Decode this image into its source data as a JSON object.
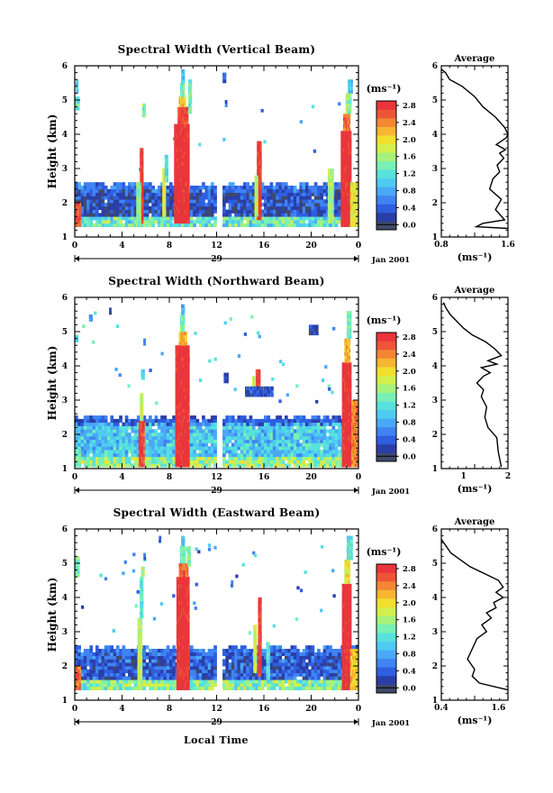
{
  "figure": {
    "x_title": "Local Time",
    "date_label": "Jan 2001",
    "day_label": "29",
    "x_ticks": [
      "0",
      "4",
      "8",
      "12",
      "16",
      "20",
      "0"
    ],
    "y_title": "Height (km)",
    "y_ticks": [
      "1",
      "2",
      "3",
      "4",
      "5",
      "6"
    ],
    "unit_label": "(ms⁻¹)",
    "colorbar_ticks": [
      "0.0",
      "0.4",
      "0.8",
      "1.2",
      "1.6",
      "2.0",
      "2.4",
      "2.8"
    ],
    "colormap": [
      "#3f4a6b",
      "#2a3ea8",
      "#2f5ee0",
      "#3f84f2",
      "#4aa8f6",
      "#4ecbf1",
      "#57e2dc",
      "#78f0b6",
      "#a6f27c",
      "#d3ef4c",
      "#f2df2e",
      "#f7b531",
      "#f48634",
      "#ee5537",
      "#e9353b"
    ],
    "average_title": "Average",
    "colors": {
      "missing": "#ffffff",
      "axis": "#000000",
      "line": "#000000"
    }
  },
  "panels": [
    {
      "title": "Spectral Width (Vertical Beam)",
      "avg_xticks": [
        "0.8",
        "1.6"
      ],
      "avg_xlabel": "(ms⁻¹)"
    },
    {
      "title": "Spectral Width (Northward Beam)",
      "avg_xticks": [
        "1",
        "2"
      ],
      "avg_xlabel": "(ms⁻¹)"
    },
    {
      "title": "Spectral Width (Eastward Beam)",
      "avg_xticks": [
        "0.4",
        "1.6"
      ],
      "avg_xlabel": "(ms⁻¹)"
    }
  ],
  "chart_data": [
    {
      "type": "heatmap",
      "title": "Spectral Width (Vertical Beam)",
      "xlabel": "Local Time",
      "ylabel": "Height (km)",
      "xlim": [
        0,
        24
      ],
      "ylim": [
        1,
        6
      ],
      "zlim": [
        0,
        3.0
      ],
      "colorbar_label": "(ms⁻¹)",
      "data_gaps_hours": [
        [
          12.0,
          12.3
        ]
      ],
      "layer_top_km": 2.55,
      "layer_bottom_km": 1.3,
      "layer_values": {
        "top_edge": 0.6,
        "mid": 0.4,
        "bottom": 1.2
      },
      "cells": [
        {
          "t0": 0.0,
          "t1": 0.5,
          "h0": 1.3,
          "h1": 2.0,
          "v": 2.7
        },
        {
          "t0": 0.0,
          "t1": 0.4,
          "h0": 4.7,
          "h1": 5.1,
          "v": 1.4
        },
        {
          "t0": 0.1,
          "t1": 0.3,
          "h0": 5.2,
          "h1": 5.6,
          "v": 1.0
        },
        {
          "t0": 5.4,
          "t1": 5.8,
          "h0": 1.4,
          "h1": 2.6,
          "v": 2.8
        },
        {
          "t0": 5.5,
          "t1": 5.8,
          "h0": 2.6,
          "h1": 3.6,
          "v": 2.9
        },
        {
          "t0": 5.2,
          "t1": 5.6,
          "h0": 1.3,
          "h1": 2.6,
          "v": 1.6
        },
        {
          "t0": 5.7,
          "t1": 6.0,
          "h0": 4.5,
          "h1": 4.9,
          "v": 1.6
        },
        {
          "t0": 7.4,
          "t1": 7.7,
          "h0": 1.6,
          "h1": 3.0,
          "v": 2.0
        },
        {
          "t0": 7.6,
          "t1": 7.9,
          "h0": 2.6,
          "h1": 3.4,
          "v": 1.3
        },
        {
          "t0": 8.4,
          "t1": 9.7,
          "h0": 1.4,
          "h1": 4.3,
          "v": 3.0
        },
        {
          "t0": 8.7,
          "t1": 9.6,
          "h0": 4.3,
          "h1": 4.8,
          "v": 2.8
        },
        {
          "t0": 8.8,
          "t1": 9.4,
          "h0": 4.8,
          "h1": 5.1,
          "v": 2.2
        },
        {
          "t0": 8.9,
          "t1": 9.3,
          "h0": 5.1,
          "h1": 5.5,
          "v": 1.5
        },
        {
          "t0": 9.0,
          "t1": 9.3,
          "h0": 5.5,
          "h1": 5.9,
          "v": 1.0
        },
        {
          "t0": 9.6,
          "t1": 9.9,
          "h0": 4.6,
          "h1": 5.6,
          "v": 1.4
        },
        {
          "t0": 12.5,
          "t1": 12.8,
          "h0": 5.5,
          "h1": 5.8,
          "v": 0.5
        },
        {
          "t0": 12.7,
          "t1": 12.9,
          "h0": 4.8,
          "h1": 5.0,
          "v": 0.6
        },
        {
          "t0": 15.4,
          "t1": 15.8,
          "h0": 1.5,
          "h1": 3.8,
          "v": 2.9
        },
        {
          "t0": 15.2,
          "t1": 15.5,
          "h0": 1.6,
          "h1": 2.8,
          "v": 1.8
        },
        {
          "t0": 21.4,
          "t1": 21.9,
          "h0": 1.4,
          "h1": 3.0,
          "v": 1.7
        },
        {
          "t0": 22.5,
          "t1": 23.4,
          "h0": 1.3,
          "h1": 4.1,
          "v": 3.0
        },
        {
          "t0": 22.7,
          "t1": 23.3,
          "h0": 4.1,
          "h1": 4.6,
          "v": 2.6
        },
        {
          "t0": 22.9,
          "t1": 23.4,
          "h0": 4.6,
          "h1": 5.2,
          "v": 1.6
        },
        {
          "t0": 23.1,
          "t1": 23.5,
          "h0": 5.2,
          "h1": 5.6,
          "v": 1.0
        },
        {
          "t0": 23.3,
          "t1": 24.0,
          "h0": 1.3,
          "h1": 2.6,
          "v": 2.0
        }
      ],
      "average_profile": {
        "xlim": [
          0.8,
          1.6
        ],
        "ylim": [
          1,
          6
        ],
        "xlabel": "(ms⁻¹)",
        "x": [
          1.6,
          1.22,
          1.3,
          1.56,
          1.45,
          1.52,
          1.38,
          1.42,
          1.5,
          1.47,
          1.55,
          1.5,
          1.57,
          1.46,
          1.58,
          1.6,
          1.56,
          1.45,
          1.3,
          1.2,
          1.05,
          0.9,
          0.85,
          0.8
        ],
        "height_km": [
          1.25,
          1.3,
          1.4,
          1.5,
          1.8,
          2.1,
          2.4,
          2.7,
          2.9,
          3.1,
          3.3,
          3.45,
          3.55,
          3.7,
          3.9,
          4.0,
          4.2,
          4.5,
          4.8,
          5.1,
          5.4,
          5.6,
          5.8,
          5.9
        ]
      }
    },
    {
      "type": "heatmap",
      "title": "Spectral Width (Northward Beam)",
      "xlabel": "Local Time",
      "ylabel": "Height (km)",
      "xlim": [
        0,
        24
      ],
      "ylim": [
        1,
        6
      ],
      "zlim": [
        0,
        3.0
      ],
      "colorbar_label": "(ms⁻¹)",
      "data_gaps_hours": [
        [
          12.0,
          12.3
        ]
      ],
      "layer_top_km": 2.55,
      "layer_bottom_km": 1.05,
      "layer_values": {
        "top_edge": 0.5,
        "mid": 1.1,
        "bottom": 1.5
      },
      "cells": [
        {
          "t0": 0.0,
          "t1": 0.5,
          "h0": 1.05,
          "h1": 1.6,
          "v": 1.5
        },
        {
          "t0": 0.0,
          "t1": 0.3,
          "h0": 4.7,
          "h1": 4.9,
          "v": 1.2
        },
        {
          "t0": 1.2,
          "t1": 1.5,
          "h0": 5.3,
          "h1": 5.5,
          "v": 0.6
        },
        {
          "t0": 2.9,
          "t1": 3.1,
          "h0": 5.5,
          "h1": 5.7,
          "v": 0.4
        },
        {
          "t0": 5.4,
          "t1": 5.9,
          "h0": 1.05,
          "h1": 2.4,
          "v": 2.8
        },
        {
          "t0": 5.5,
          "t1": 5.8,
          "h0": 2.4,
          "h1": 3.2,
          "v": 1.8
        },
        {
          "t0": 5.6,
          "t1": 5.9,
          "h0": 3.6,
          "h1": 3.9,
          "v": 1.2
        },
        {
          "t0": 5.8,
          "t1": 6.0,
          "h0": 4.6,
          "h1": 4.8,
          "v": 0.8
        },
        {
          "t0": 8.5,
          "t1": 9.7,
          "h0": 1.05,
          "h1": 4.6,
          "v": 3.0
        },
        {
          "t0": 8.8,
          "t1": 9.5,
          "h0": 4.6,
          "h1": 5.0,
          "v": 2.3
        },
        {
          "t0": 8.9,
          "t1": 9.3,
          "h0": 5.0,
          "h1": 5.5,
          "v": 1.5
        },
        {
          "t0": 9.0,
          "t1": 9.3,
          "h0": 5.5,
          "h1": 5.8,
          "v": 1.0
        },
        {
          "t0": 12.6,
          "t1": 13.0,
          "h0": 3.5,
          "h1": 3.8,
          "v": 0.4
        },
        {
          "t0": 15.3,
          "t1": 15.7,
          "h0": 3.2,
          "h1": 3.9,
          "v": 2.9
        },
        {
          "t0": 15.0,
          "t1": 15.3,
          "h0": 3.3,
          "h1": 3.7,
          "v": 1.8
        },
        {
          "t0": 14.4,
          "t1": 16.8,
          "h0": 3.1,
          "h1": 3.4,
          "v": 0.4
        },
        {
          "t0": 19.8,
          "t1": 20.6,
          "h0": 4.9,
          "h1": 5.2,
          "v": 0.3
        },
        {
          "t0": 22.6,
          "t1": 23.4,
          "h0": 1.05,
          "h1": 4.1,
          "v": 3.0
        },
        {
          "t0": 22.8,
          "t1": 23.3,
          "h0": 4.1,
          "h1": 4.8,
          "v": 2.3
        },
        {
          "t0": 23.0,
          "t1": 23.4,
          "h0": 4.8,
          "h1": 5.6,
          "v": 1.5
        },
        {
          "t0": 23.4,
          "t1": 24.0,
          "h0": 1.05,
          "h1": 3.0,
          "v": 2.5
        }
      ],
      "average_profile": {
        "xlim": [
          0.5,
          2.0
        ],
        "ylim": [
          1,
          6
        ],
        "xlabel": "(ms⁻¹)",
        "x": [
          1.85,
          1.78,
          1.75,
          1.55,
          1.48,
          1.52,
          1.4,
          1.45,
          1.3,
          1.45,
          1.6,
          1.4,
          1.75,
          1.55,
          1.85,
          1.7,
          1.5,
          1.2,
          1.0,
          0.85,
          0.7,
          0.6,
          0.55
        ],
        "height_km": [
          1.05,
          1.5,
          1.9,
          2.2,
          2.5,
          2.8,
          3.1,
          3.3,
          3.5,
          3.7,
          3.8,
          3.95,
          4.05,
          4.15,
          4.3,
          4.5,
          4.7,
          4.9,
          5.1,
          5.3,
          5.5,
          5.7,
          5.85
        ]
      }
    },
    {
      "type": "heatmap",
      "title": "Spectral Width (Eastward Beam)",
      "xlabel": "Local Time",
      "ylabel": "Height (km)",
      "xlim": [
        0,
        24
      ],
      "ylim": [
        1,
        6
      ],
      "zlim": [
        0,
        3.0
      ],
      "colorbar_label": "(ms⁻¹)",
      "data_gaps_hours": [
        [
          12.0,
          12.3
        ]
      ],
      "layer_top_km": 2.55,
      "layer_bottom_km": 1.3,
      "layer_values": {
        "top_edge": 0.6,
        "mid": 0.5,
        "bottom": 1.4
      },
      "cells": [
        {
          "t0": 0.0,
          "t1": 0.5,
          "h0": 1.3,
          "h1": 2.0,
          "v": 2.6
        },
        {
          "t0": 0.0,
          "t1": 0.4,
          "h0": 4.6,
          "h1": 5.2,
          "v": 1.5
        },
        {
          "t0": 5.3,
          "t1": 5.7,
          "h0": 1.3,
          "h1": 3.4,
          "v": 1.8
        },
        {
          "t0": 5.5,
          "t1": 5.8,
          "h0": 3.4,
          "h1": 4.6,
          "v": 1.3
        },
        {
          "t0": 5.6,
          "t1": 5.9,
          "h0": 4.6,
          "h1": 4.9,
          "v": 1.7
        },
        {
          "t0": 5.8,
          "t1": 6.0,
          "h0": 5.1,
          "h1": 5.3,
          "v": 0.5
        },
        {
          "t0": 8.6,
          "t1": 9.7,
          "h0": 1.3,
          "h1": 4.6,
          "v": 3.0
        },
        {
          "t0": 8.8,
          "t1": 9.6,
          "h0": 4.6,
          "h1": 5.0,
          "v": 2.6
        },
        {
          "t0": 8.9,
          "t1": 9.4,
          "h0": 5.0,
          "h1": 5.5,
          "v": 1.5
        },
        {
          "t0": 9.0,
          "t1": 9.3,
          "h0": 5.5,
          "h1": 5.8,
          "v": 1.0
        },
        {
          "t0": 9.5,
          "t1": 9.8,
          "h0": 4.9,
          "h1": 5.5,
          "v": 1.6
        },
        {
          "t0": 7.1,
          "t1": 7.3,
          "h0": 5.6,
          "h1": 5.8,
          "v": 0.5
        },
        {
          "t0": 13.2,
          "t1": 13.4,
          "h0": 4.3,
          "h1": 4.5,
          "v": 0.5
        },
        {
          "t0": 15.5,
          "t1": 15.8,
          "h0": 1.7,
          "h1": 4.0,
          "v": 2.9
        },
        {
          "t0": 15.1,
          "t1": 15.4,
          "h0": 1.8,
          "h1": 3.2,
          "v": 1.9
        },
        {
          "t0": 16.2,
          "t1": 16.5,
          "h0": 1.6,
          "h1": 2.7,
          "v": 1.3
        },
        {
          "t0": 22.6,
          "t1": 23.4,
          "h0": 1.3,
          "h1": 4.4,
          "v": 3.0
        },
        {
          "t0": 22.8,
          "t1": 23.3,
          "h0": 4.4,
          "h1": 5.1,
          "v": 2.0
        },
        {
          "t0": 23.0,
          "t1": 23.5,
          "h0": 5.1,
          "h1": 5.8,
          "v": 1.3
        },
        {
          "t0": 23.3,
          "t1": 24.0,
          "h0": 1.3,
          "h1": 2.5,
          "v": 2.2
        }
      ],
      "average_profile": {
        "xlim": [
          0.4,
          1.8
        ],
        "ylim": [
          1,
          6
        ],
        "xlabel": "(ms⁻¹)",
        "x": [
          1.8,
          1.2,
          1.05,
          1.1,
          0.95,
          1.05,
          1.15,
          1.35,
          1.25,
          1.45,
          1.35,
          1.55,
          1.5,
          1.7,
          1.55,
          1.7,
          1.6,
          1.3,
          1.0,
          0.8,
          0.6,
          0.5,
          0.4
        ],
        "height_km": [
          1.3,
          1.5,
          1.7,
          1.9,
          2.2,
          2.5,
          2.8,
          3.0,
          3.2,
          3.4,
          3.55,
          3.7,
          3.85,
          4.0,
          4.15,
          4.3,
          4.5,
          4.7,
          4.9,
          5.1,
          5.3,
          5.5,
          5.7
        ]
      }
    }
  ]
}
